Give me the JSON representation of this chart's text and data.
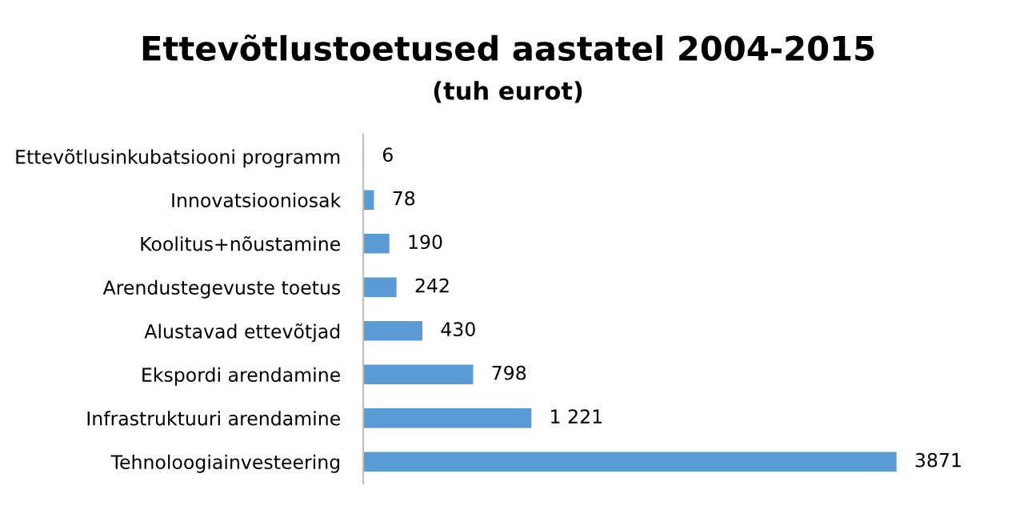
{
  "chart_data": {
    "type": "bar",
    "orientation": "horizontal",
    "title": "Ettevõtlustoetused aastatel 2004-2015",
    "subtitle": "(tuh eurot)",
    "categories": [
      "Ettevõtlusinkubatsiooni programm",
      "Innovatsiooniosak",
      "Koolitus+nõustamine",
      "Arendustegevuste toetus",
      "Alustavad ettevõtjad",
      "Ekspordi arendamine",
      "Infrastruktuuri arendamine",
      "Tehnoloogiainvesteering"
    ],
    "values": [
      6,
      78,
      190,
      242,
      430,
      798,
      1221,
      3871
    ],
    "value_labels": [
      "6",
      "78",
      "190",
      "242",
      "430",
      "798",
      "1 221",
      "3871"
    ],
    "color": "#5b9bd5",
    "grid": false,
    "legend": false
  }
}
